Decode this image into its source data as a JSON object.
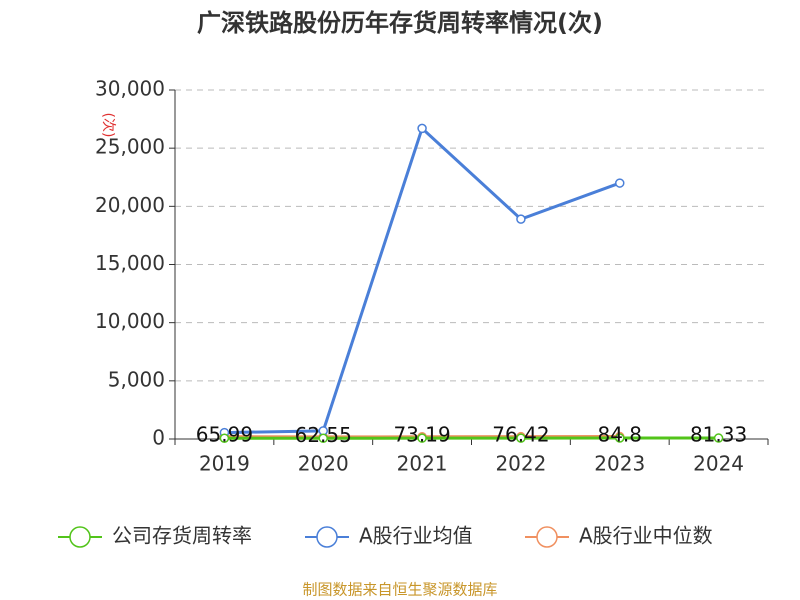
{
  "chart_data": {
    "type": "line",
    "title": "广深铁路股份历年存货周转率情况(次)",
    "y_label": "(次)",
    "source": "制图数据来自恒生聚源数据库",
    "categories": [
      "2019",
      "2020",
      "2021",
      "2022",
      "2023",
      "2024"
    ],
    "series": [
      {
        "name": "公司存货周转率",
        "color": "#52c41a",
        "values": [
          65.99,
          62.55,
          73.19,
          76.42,
          84.8,
          81.33
        ],
        "show_labels": true
      },
      {
        "name": "A股行业均值",
        "color": "#4a7fd8",
        "values": [
          550,
          700,
          26700,
          18900,
          22000,
          null
        ]
      },
      {
        "name": "A股行业中位数",
        "color": "#f09060",
        "values": [
          200,
          180,
          190,
          200,
          210,
          null
        ]
      }
    ],
    "ylim": [
      0,
      30000
    ],
    "yticks": [
      0,
      {
        "value": 5000,
        "label": "5,000"
      },
      {
        "value": 10000,
        "label": "10,000"
      },
      {
        "value": 15000,
        "label": "15,000"
      },
      {
        "value": 20000,
        "label": "20,000"
      },
      {
        "value": 25000,
        "label": "25,000"
      },
      {
        "value": 30000,
        "label": "30,000"
      }
    ],
    "grid": true
  }
}
